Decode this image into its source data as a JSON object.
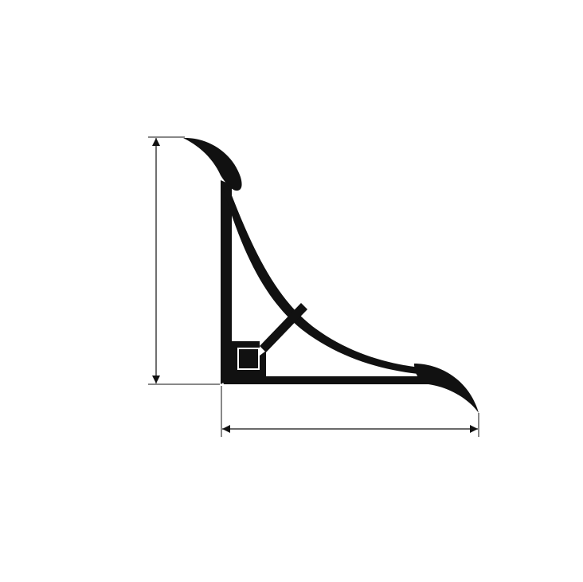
{
  "diagram": {
    "subject": "skirting-board-profile-cross-section",
    "ink_color": "#111111",
    "background_color": "#ffffff",
    "dimensions": [
      {
        "name": "height-dimension",
        "orientation": "vertical"
      },
      {
        "name": "width-dimension",
        "orientation": "horizontal"
      }
    ]
  }
}
